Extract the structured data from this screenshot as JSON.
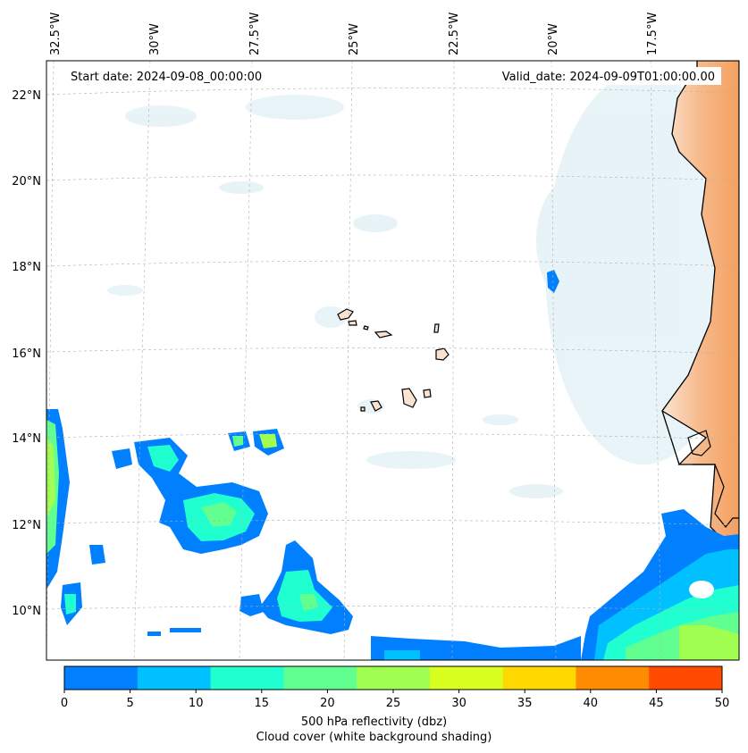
{
  "map": {
    "lon_labels": [
      "32.5°W",
      "30°W",
      "27.5°W",
      "25°W",
      "22.5°W",
      "20°W",
      "17.5°W"
    ],
    "lat_labels": [
      "22°N",
      "20°N",
      "18°N",
      "16°N",
      "14°N",
      "12°N",
      "10°N"
    ],
    "start_date": "Start date: 2024-09-08_00:00:00",
    "valid_date": "Valid_date: 2024-09-09T01:00:00.00"
  },
  "colorbar": {
    "ticks": [
      "0",
      "5",
      "10",
      "15",
      "20",
      "25",
      "30",
      "35",
      "40",
      "45",
      "50"
    ],
    "colors": [
      "#0080ff",
      "#00c0ff",
      "#20ffd0",
      "#60ff90",
      "#a0ff50",
      "#d8ff20",
      "#ffd800",
      "#ff8c00",
      "#ff4a00"
    ],
    "label": "500 hPa reflectivity (dbz)",
    "sublabel": "Cloud cover (white background shading)"
  },
  "colors": {
    "land": "#f4a460",
    "cloud_shade": "#d6ebf2",
    "coast": "#000000"
  }
}
